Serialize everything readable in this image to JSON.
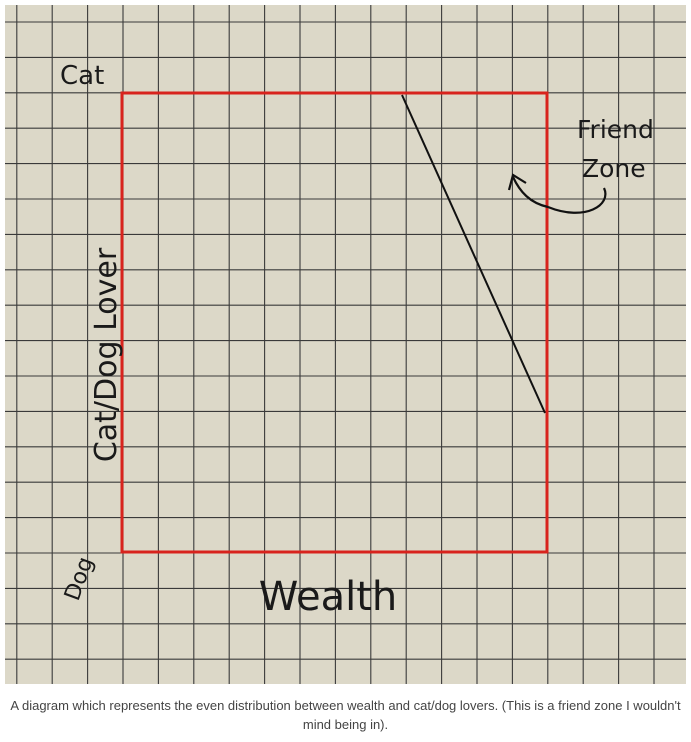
{
  "diagram": {
    "top_label": "Cat",
    "bottom_label": "Dog",
    "y_axis_label": "Cat/Dog Lover",
    "x_axis_label": "Wealth",
    "zone_label_line1": "Friend",
    "zone_label_line2": "Zone"
  },
  "caption": "A diagram which represents the even distribution between wealth and cat/dog lovers. (This is a friend zone I wouldn't mind being in)."
}
